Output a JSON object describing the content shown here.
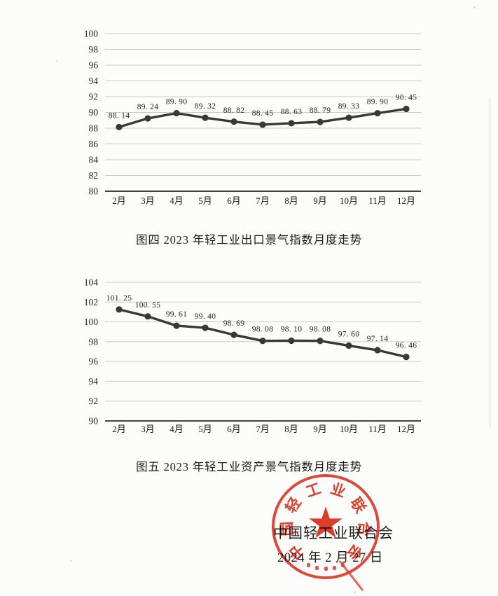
{
  "page": {
    "captions": {
      "figure4": "图四 2023 年轻工业出口景气指数月度走势",
      "figure5": "图五 2023 年轻工业资产景气指数月度走势"
    },
    "footer": {
      "organization": "中国轻工业联合会",
      "date": "2024 年 2 月 27 日"
    },
    "seal": {
      "ring_text": "中国轻工业联合会",
      "star": "★",
      "color": "#dc2f1d"
    }
  },
  "chart_data": [
    {
      "type": "line",
      "title": "图四 2023 年轻工业出口景气指数月度走势",
      "categories": [
        "2月",
        "3月",
        "4月",
        "5月",
        "6月",
        "7月",
        "8月",
        "9月",
        "10月",
        "11月",
        "12月"
      ],
      "values": [
        88.14,
        89.24,
        89.9,
        89.32,
        88.82,
        88.45,
        88.63,
        88.79,
        89.33,
        89.9,
        90.45
      ],
      "point_labels": [
        "88. 14",
        "89. 24",
        "89. 90",
        "89. 32",
        "88. 82",
        "88. 45",
        "88. 63",
        "88. 79",
        "89. 33",
        "89. 90",
        "90. 45"
      ],
      "ylim": [
        80,
        100
      ],
      "yticks": [
        100,
        98,
        96,
        94,
        92,
        90,
        88,
        86,
        84,
        82,
        80
      ],
      "grid": true,
      "legend": false,
      "line_color": "#383838"
    },
    {
      "type": "line",
      "title": "图五 2023 年轻工业资产景气指数月度走势",
      "categories": [
        "2月",
        "3月",
        "4月",
        "5月",
        "6月",
        "7月",
        "8月",
        "9月",
        "10月",
        "11月",
        "12月"
      ],
      "values": [
        101.25,
        100.55,
        99.61,
        99.4,
        98.69,
        98.08,
        98.1,
        98.08,
        97.6,
        97.14,
        96.46
      ],
      "point_labels": [
        "101. 25",
        "100. 55",
        "99. 61",
        "99. 40",
        "98. 69",
        "98. 08",
        "98. 10",
        "98. 08",
        "97. 60",
        "97. 14",
        "96. 46"
      ],
      "ylim": [
        90,
        104
      ],
      "yticks": [
        104,
        102,
        100,
        98,
        96,
        94,
        92,
        90
      ],
      "grid": true,
      "legend": false,
      "line_color": "#383838"
    }
  ]
}
